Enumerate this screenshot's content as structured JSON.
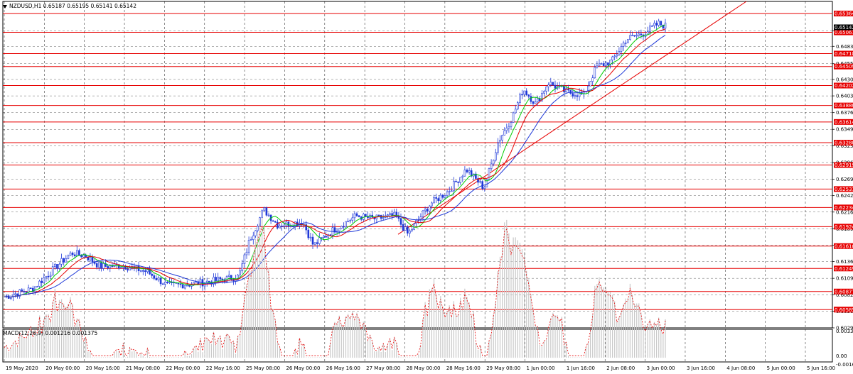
{
  "header": {
    "symbol": "NZDUSD,H1",
    "ohlc": "0.65187 0.65195 0.65141 0.65142"
  },
  "macd_header": {
    "label": "MACD(12,26,9) 0.001216 0.001375"
  },
  "colors": {
    "bull": "#1e38d8",
    "resist": "#e60000",
    "ma_fast": "#00cc00",
    "ma_mid": "#e60000",
    "ma_slow": "#1e38d8",
    "macd_hist": "#c8c8c8",
    "macd_signal": "#e60000"
  },
  "chart_data": {
    "type": "candlestick",
    "price_range": [
      0.6029,
      0.6556
    ],
    "price_ticks": [
      "0.65085",
      "0.64835",
      "0.64555",
      "0.64300",
      "0.64035",
      "0.63765",
      "0.63495",
      "0.63230",
      "0.62960",
      "0.62690",
      "0.62425",
      "0.62160",
      "0.61890",
      "0.61625",
      "0.61360",
      "0.61090",
      "0.60825",
      "0.60560",
      "0.60290"
    ],
    "current_price": "0.65142",
    "horizontal_levels": [
      "0.65364",
      "0.65061",
      "0.64718",
      "0.64509",
      "0.64202",
      "0.63880",
      "0.63614",
      "0.63280",
      "0.62919",
      "0.62531",
      "0.62234",
      "0.61924",
      "0.61610",
      "0.61249",
      "0.60877",
      "0.60585"
    ],
    "time_labels": [
      "19 May 2020",
      "20 May 00:00",
      "20 May 16:00",
      "21 May 08:00",
      "22 May 00:00",
      "22 May 16:00",
      "25 May 08:00",
      "26 May 00:00",
      "26 May 16:00",
      "27 May 08:00",
      "28 May 00:00",
      "28 May 16:00",
      "29 May 08:00",
      "1 Jun 00:00",
      "1 Jun 16:00",
      "2 Jun 08:00",
      "3 Jun 00:00",
      "3 Jun 16:00",
      "4 Jun 08:00",
      "5 Jun 00:00",
      "5 Jun 16:00"
    ],
    "price_path": [
      [
        0,
        0.6079
      ],
      [
        40,
        0.6092
      ],
      [
        75,
        0.613
      ],
      [
        95,
        0.615
      ],
      [
        115,
        0.6145
      ],
      [
        135,
        0.6128
      ],
      [
        165,
        0.613
      ],
      [
        200,
        0.612
      ],
      [
        230,
        0.6097
      ],
      [
        265,
        0.61
      ],
      [
        300,
        0.6106
      ],
      [
        330,
        0.6112
      ],
      [
        345,
        0.617
      ],
      [
        365,
        0.622
      ],
      [
        385,
        0.6195
      ],
      [
        420,
        0.62
      ],
      [
        435,
        0.6162
      ],
      [
        460,
        0.6185
      ],
      [
        495,
        0.621
      ],
      [
        520,
        0.6205
      ],
      [
        550,
        0.621
      ],
      [
        568,
        0.618
      ],
      [
        580,
        0.62
      ],
      [
        600,
        0.623
      ],
      [
        625,
        0.625
      ],
      [
        650,
        0.6285
      ],
      [
        675,
        0.6255
      ],
      [
        695,
        0.633
      ],
      [
        715,
        0.637
      ],
      [
        730,
        0.6415
      ],
      [
        748,
        0.639
      ],
      [
        765,
        0.6425
      ],
      [
        790,
        0.641
      ],
      [
        815,
        0.6405
      ],
      [
        833,
        0.645
      ],
      [
        855,
        0.646
      ],
      [
        875,
        0.6495
      ],
      [
        900,
        0.6505
      ],
      [
        920,
        0.652
      ],
      [
        938,
        0.6514
      ]
    ],
    "macd_range": [
      0.0,
      0.003378
    ],
    "macd_ticks": [
      "0.003378",
      "0.00",
      "-0.001689"
    ],
    "macd_current": [
      "0.001216",
      "0.001375"
    ]
  }
}
